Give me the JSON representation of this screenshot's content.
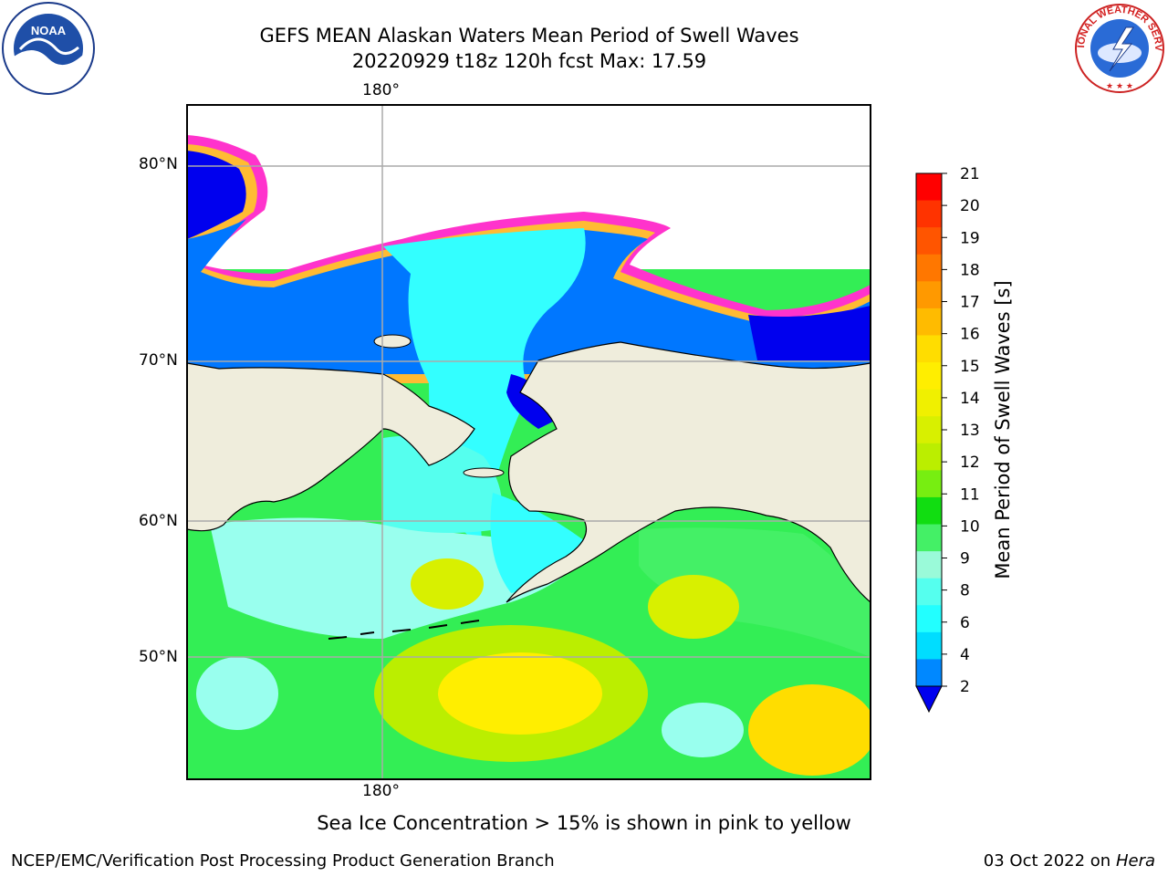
{
  "title_line1": "GEFS MEAN Alaskan Waters Mean Period of Swell Waves",
  "title_line2": "20220929 t18z 120h fcst   Max: 17.59",
  "map": {
    "lon_label_top": "180°",
    "lon_label_bottom": "180°",
    "lat_labels": [
      "80°N",
      "70°N",
      "60°N",
      "50°N"
    ],
    "land_color": "#efeddc",
    "ocean_base_color": "#33ee55"
  },
  "colorbar": {
    "label": "Mean Period of Swell Waves [s]",
    "ticks": [
      "21",
      "20",
      "19",
      "18",
      "17",
      "16",
      "15",
      "14",
      "13",
      "12",
      "11",
      "10",
      "9",
      "8",
      "6",
      "4",
      "2"
    ],
    "colors": [
      "#ff0000",
      "#ff3300",
      "#ff5500",
      "#ff7700",
      "#ff9900",
      "#ffbb00",
      "#ffdd00",
      "#ffee00",
      "#f0f000",
      "#d8f000",
      "#bbee00",
      "#77ee11",
      "#11dd11",
      "#44f066",
      "#9afad9",
      "#55ffee",
      "#22ffff",
      "#00ddff",
      "#0088ff"
    ],
    "extend_color": "#0000ee"
  },
  "logos": {
    "noaa_text": "NOAA",
    "nws_text": "NATIONAL WEATHER SERVICE"
  },
  "footer_note": "Sea Ice Concentration > 15% is shown in pink to yellow",
  "credit_left": "NCEP/EMC/Verification Post Processing Product Generation Branch",
  "credit_date": "03 Oct 2022 on",
  "credit_host": "Hera"
}
